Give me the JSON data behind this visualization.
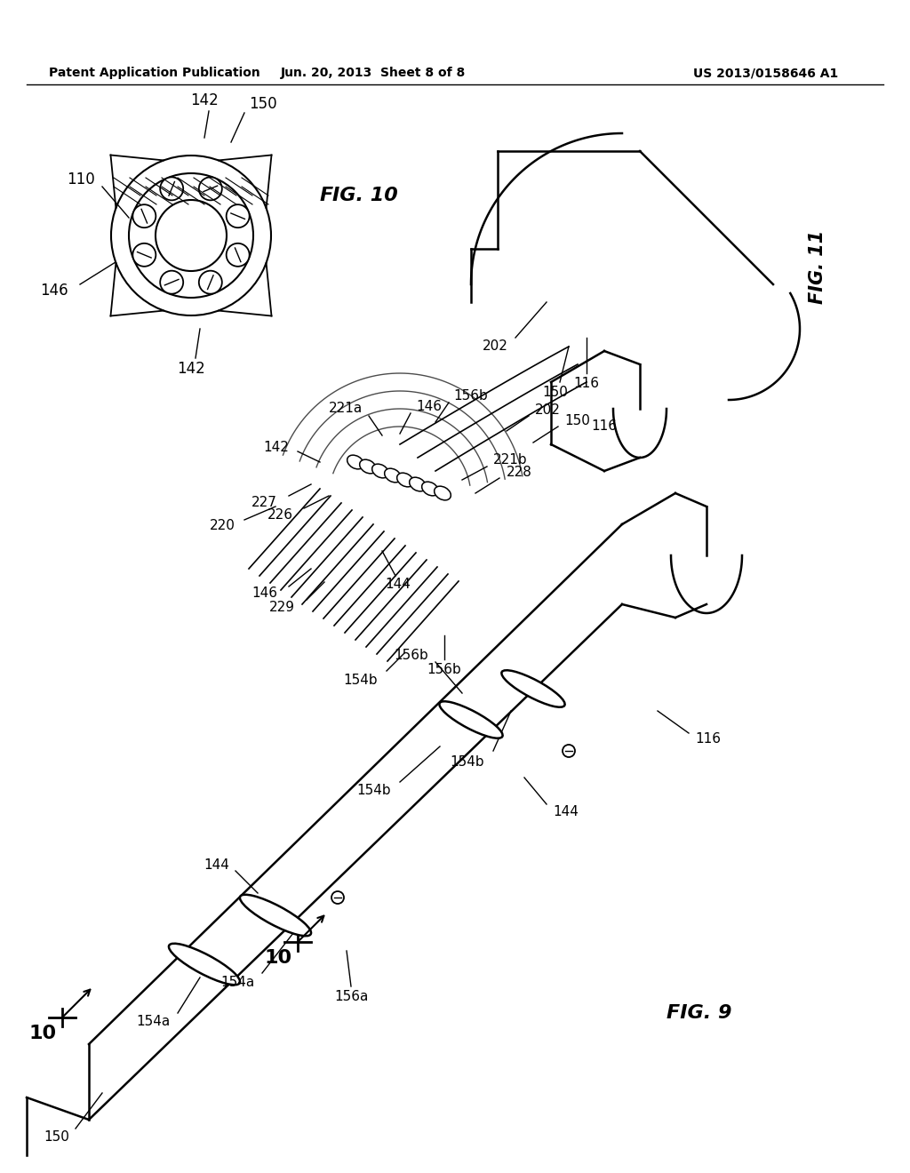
{
  "header_left": "Patent Application Publication",
  "header_center": "Jun. 20, 2013  Sheet 8 of 8",
  "header_right": "US 2013/0158646 A1",
  "background_color": "#ffffff",
  "line_color": "#000000",
  "text_color": "#000000",
  "fig9_label": "FIG. 9",
  "fig10_label": "FIG. 10",
  "fig11_label": "FIG. 11"
}
